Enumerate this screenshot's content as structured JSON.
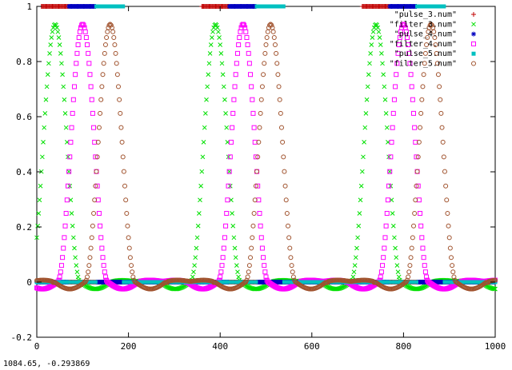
{
  "status_readout": "1084.65, -0.293869",
  "chart_data": {
    "type": "scatter",
    "title": "",
    "xlabel": "",
    "ylabel": "",
    "xlim": [
      0,
      1000
    ],
    "ylim": [
      -0.2,
      1
    ],
    "xticks": [
      0,
      200,
      400,
      600,
      800,
      1000
    ],
    "yticks": [
      -0.2,
      0,
      0.2,
      0.4,
      0.6,
      0.8,
      1
    ],
    "xtick_labels": [
      "0",
      "200",
      "400",
      "600",
      "800",
      "1000"
    ],
    "ytick_labels": [
      "-0.2",
      "0",
      "0.2",
      "0.4",
      "0.6",
      "0.8",
      "1"
    ],
    "legend_position": "top-right",
    "grid": false,
    "period": 350,
    "series": [
      {
        "name": "\"pulse_3.num\"",
        "marker": "plus",
        "color": "#c00000",
        "kind": "pulse",
        "on_start": 10,
        "on_end": 70,
        "active_value": 1,
        "step": 2
      },
      {
        "name": "\"filter_3.num\"",
        "marker": "cross",
        "color": "#00e000",
        "kind": "filter",
        "peak_x": 40,
        "peak_value": 0.935,
        "halfwidth": 55,
        "step": 2
      },
      {
        "name": "\"pulse_4.num\"",
        "marker": "star",
        "color": "#0000c0",
        "kind": "pulse",
        "on_start": 70,
        "on_end": 130,
        "active_value": 1,
        "step": 2
      },
      {
        "name": "\"filter_4.num\"",
        "marker": "square",
        "color": "#ff00ff",
        "kind": "filter",
        "peak_x": 100,
        "peak_value": 0.935,
        "halfwidth": 55,
        "step": 2
      },
      {
        "name": "\"pulse_5.num\"",
        "marker": "box",
        "color": "#00c0c0",
        "kind": "pulse",
        "on_start": 130,
        "on_end": 190,
        "active_value": 1,
        "step": 2
      },
      {
        "name": "\"filter_5.num\"",
        "marker": "circle",
        "color": "#a0522d",
        "kind": "filter",
        "peak_x": 160,
        "peak_value": 0.935,
        "halfwidth": 55,
        "step": 2
      }
    ]
  }
}
